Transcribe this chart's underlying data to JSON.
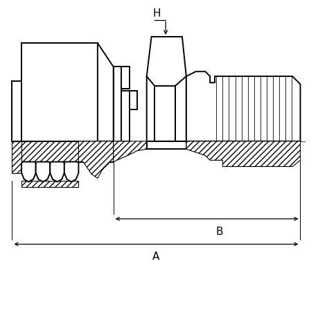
{
  "background_color": "#ffffff",
  "line_color": "#000000",
  "fig_width": 4.6,
  "fig_height": 4.6,
  "dpi": 100,
  "label_A": "A",
  "label_B": "B",
  "label_H": "H",
  "lw_main": 1.4,
  "lw_thin": 0.8,
  "lw_dim": 0.9
}
